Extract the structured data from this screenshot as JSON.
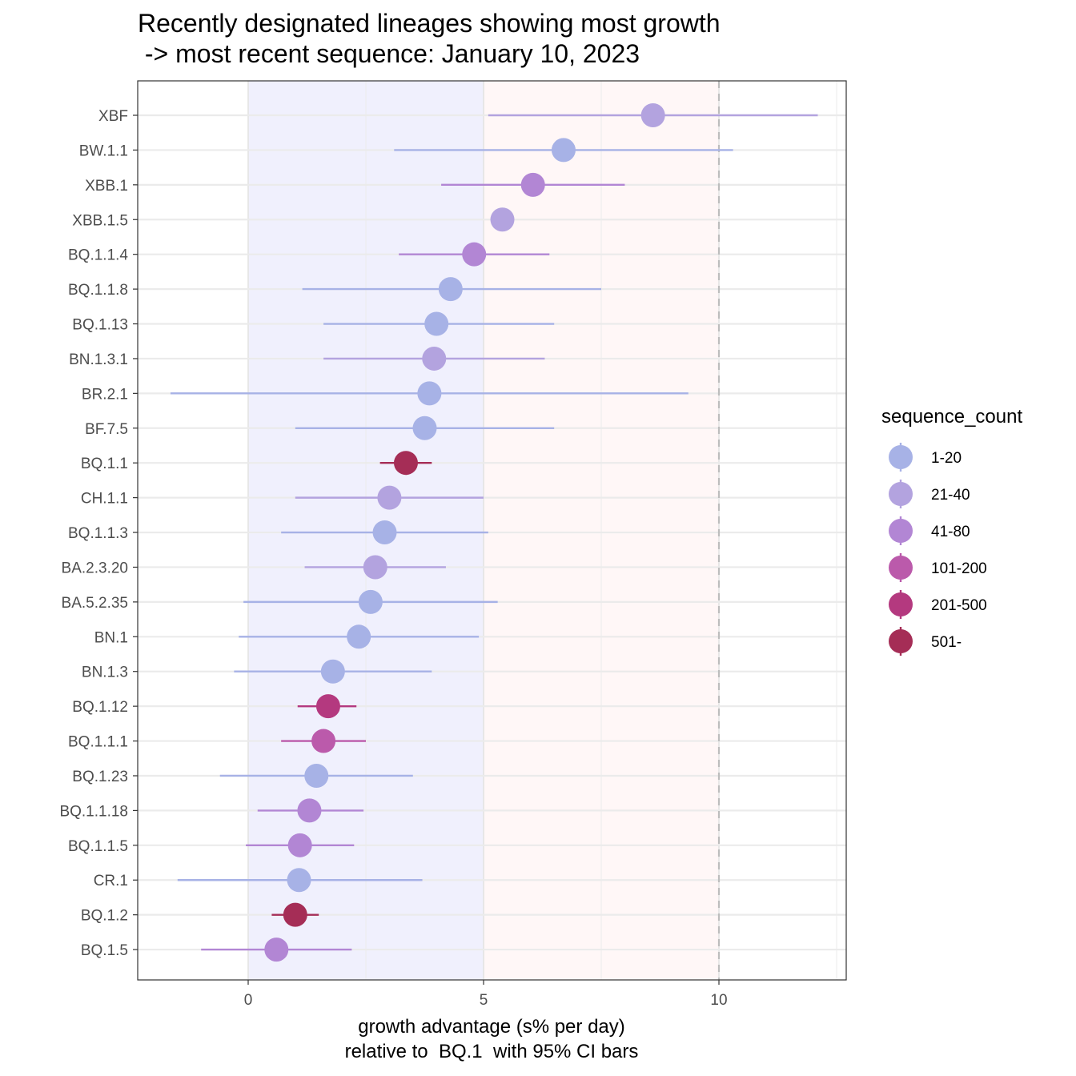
{
  "chart_data": {
    "type": "scatter",
    "title": "Recently designated lineages showing most growth",
    "subtitle": " -> most recent sequence: January 10, 2023",
    "xlabel": "growth advantage (s% per day)",
    "xlabel2": "relative to  BQ.1  with 95% CI bars",
    "xlim": [
      -2.33,
      12.67
    ],
    "x_ticks": [
      0,
      5,
      10
    ],
    "x_tick_labels": [
      "0",
      "5",
      "10"
    ],
    "reference_line_x": 10,
    "shaded_regions": [
      {
        "from": 0,
        "to": 5,
        "color": "#f0f0fd"
      },
      {
        "from": 5,
        "to": 10,
        "color": "#fff7f7"
      }
    ],
    "grid": true,
    "legend_title": "sequence_count",
    "legend_position": "right",
    "legend": [
      {
        "label": "1-20",
        "color": "#a7b2e6"
      },
      {
        "label": "21-40",
        "color": "#b3a3df"
      },
      {
        "label": "41-80",
        "color": "#b286d4"
      },
      {
        "label": "101-200",
        "color": "#bb5aab"
      },
      {
        "label": "201-500",
        "color": "#b4397f"
      },
      {
        "label": "501-",
        "color": "#a52d56"
      }
    ],
    "points": [
      {
        "lineage": "XBF",
        "x": 8.6,
        "lo": 5.1,
        "hi": 12.1,
        "group": "21-40"
      },
      {
        "lineage": "BW.1.1",
        "x": 6.7,
        "lo": 3.1,
        "hi": 10.3,
        "group": "1-20"
      },
      {
        "lineage": "XBB.1",
        "x": 6.05,
        "lo": 4.1,
        "hi": 8.0,
        "group": "41-80"
      },
      {
        "lineage": "XBB.1.5",
        "x": 5.4,
        "lo": null,
        "hi": null,
        "group": "21-40"
      },
      {
        "lineage": "BQ.1.1.4",
        "x": 4.8,
        "lo": 3.2,
        "hi": 6.4,
        "group": "41-80"
      },
      {
        "lineage": "BQ.1.1.8",
        "x": 4.3,
        "lo": 1.15,
        "hi": 7.5,
        "group": "1-20"
      },
      {
        "lineage": "BQ.1.13",
        "x": 4.0,
        "lo": 1.6,
        "hi": 6.5,
        "group": "1-20"
      },
      {
        "lineage": "BN.1.3.1",
        "x": 3.95,
        "lo": 1.6,
        "hi": 6.3,
        "group": "21-40"
      },
      {
        "lineage": "BR.2.1",
        "x": 3.85,
        "lo": -1.65,
        "hi": 9.35,
        "group": "1-20"
      },
      {
        "lineage": "BF.7.5",
        "x": 3.75,
        "lo": 1.0,
        "hi": 6.5,
        "group": "1-20"
      },
      {
        "lineage": "BQ.1.1",
        "x": 3.35,
        "lo": 2.8,
        "hi": 3.9,
        "group": "501-"
      },
      {
        "lineage": "CH.1.1",
        "x": 3.0,
        "lo": 1.0,
        "hi": 5.0,
        "group": "21-40"
      },
      {
        "lineage": "BQ.1.1.3",
        "x": 2.9,
        "lo": 0.7,
        "hi": 5.1,
        "group": "1-20"
      },
      {
        "lineage": "BA.2.3.20",
        "x": 2.7,
        "lo": 1.2,
        "hi": 4.2,
        "group": "21-40"
      },
      {
        "lineage": "BA.5.2.35",
        "x": 2.6,
        "lo": -0.1,
        "hi": 5.3,
        "group": "1-20"
      },
      {
        "lineage": "BN.1",
        "x": 2.35,
        "lo": -0.2,
        "hi": 4.9,
        "group": "1-20"
      },
      {
        "lineage": "BN.1.3",
        "x": 1.8,
        "lo": -0.3,
        "hi": 3.9,
        "group": "1-20"
      },
      {
        "lineage": "BQ.1.12",
        "x": 1.7,
        "lo": 1.05,
        "hi": 2.3,
        "group": "201-500"
      },
      {
        "lineage": "BQ.1.1.1",
        "x": 1.6,
        "lo": 0.7,
        "hi": 2.5,
        "group": "101-200"
      },
      {
        "lineage": "BQ.1.23",
        "x": 1.45,
        "lo": -0.6,
        "hi": 3.5,
        "group": "1-20"
      },
      {
        "lineage": "BQ.1.1.18",
        "x": 1.3,
        "lo": 0.2,
        "hi": 2.45,
        "group": "41-80"
      },
      {
        "lineage": "BQ.1.1.5",
        "x": 1.1,
        "lo": -0.05,
        "hi": 2.25,
        "group": "41-80"
      },
      {
        "lineage": "CR.1",
        "x": 1.08,
        "lo": -1.5,
        "hi": 3.7,
        "group": "1-20"
      },
      {
        "lineage": "BQ.1.2",
        "x": 1.0,
        "lo": 0.5,
        "hi": 1.5,
        "group": "501-"
      },
      {
        "lineage": "BQ.1.5",
        "x": 0.6,
        "lo": -1.0,
        "hi": 2.2,
        "group": "41-80"
      }
    ]
  }
}
